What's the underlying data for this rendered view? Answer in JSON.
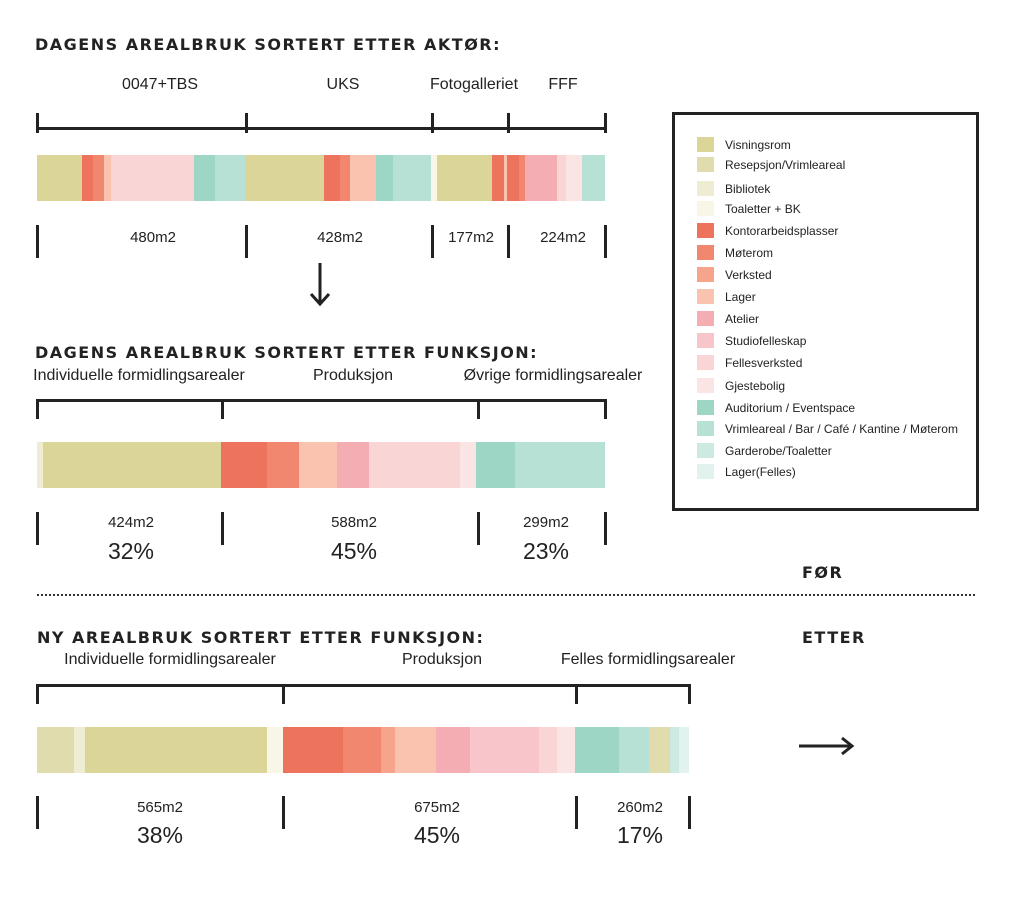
{
  "colors": {
    "visningsrom": "#dcd598",
    "resepsjon": "#e1dcad",
    "bibliotek": "#eeedd3",
    "toaletter": "#f8f6e6",
    "kontor": "#ee735c",
    "moterom": "#f28770",
    "verksted": "#f6a48c",
    "lager": "#f9c3b0",
    "atelier": "#f4adb3",
    "studio": "#f7c5ca",
    "fellesverksted": "#f9d5d6",
    "gjestebolig": "#fbe5e4",
    "auditorium": "#9dd6c5",
    "vrimle": "#b8e1d5",
    "garderobe": "#cdeae2",
    "lagerfelles": "#e2f3ef"
  },
  "legend": [
    {
      "key": "visningsrom",
      "label": "Visningsrom"
    },
    {
      "key": "resepsjon",
      "label": "Resepsjon/Vrimleareal"
    },
    {
      "key": "bibliotek",
      "label": "Bibliotek"
    },
    {
      "key": "toaletter",
      "label": "Toaletter + BK"
    },
    {
      "key": "kontor",
      "label": "Kontorarbeidsplasser"
    },
    {
      "key": "moterom",
      "label": "Møterom"
    },
    {
      "key": "verksted",
      "label": "Verksted"
    },
    {
      "key": "lager",
      "label": "Lager"
    },
    {
      "key": "atelier",
      "label": "Atelier"
    },
    {
      "key": "studio",
      "label": "Studiofelleskap"
    },
    {
      "key": "fellesverksted",
      "label": "Fellesverksted"
    },
    {
      "key": "gjestebolig",
      "label": "Gjestebolig"
    },
    {
      "key": "auditorium",
      "label": "Auditorium / Eventspace"
    },
    {
      "key": "vrimle",
      "label": "Vrimleareal / Bar / Café / Kantine / Møterom"
    },
    {
      "key": "garderobe",
      "label": "Garderobe/Toaletter"
    },
    {
      "key": "lagerfelles",
      "label": "Lager(Felles)"
    }
  ],
  "section1": {
    "title": "DAGENS AREALBRUK SORTERT ETTER AKTØR:",
    "groups": [
      {
        "label": "0047+TBS",
        "area": "480m2"
      },
      {
        "label": "UKS",
        "area": "428m2"
      },
      {
        "label": "Fotogalleriet",
        "area": "177m2"
      },
      {
        "label": "FFF",
        "area": "224m2"
      }
    ],
    "segments": [
      [
        "visningsrom",
        45
      ],
      [
        "kontor",
        11
      ],
      [
        "moterom",
        11
      ],
      [
        "lager",
        7
      ],
      [
        "fellesverksted",
        83
      ],
      [
        "auditorium",
        21
      ],
      [
        "vrimle",
        30
      ],
      [
        "visningsrom",
        79
      ],
      [
        "kontor",
        16
      ],
      [
        "moterom",
        10
      ],
      [
        "lager",
        26
      ],
      [
        "auditorium",
        17
      ],
      [
        "vrimle",
        38
      ],
      [
        "toaletter",
        6
      ],
      [
        "visningsrom",
        55
      ],
      [
        "kontor",
        12
      ],
      [
        "lager",
        3
      ],
      [
        "kontor",
        12
      ],
      [
        "moterom",
        6
      ],
      [
        "atelier",
        32
      ],
      [
        "fellesverksted",
        9
      ],
      [
        "gjestebolig",
        16
      ],
      [
        "vrimle",
        23
      ]
    ]
  },
  "section2": {
    "title": "DAGENS AREALBRUK SORTERT ETTER FUNKSJON:",
    "groups": [
      {
        "label": "Individuelle formidlingsarealer",
        "area": "424m2",
        "percent": "32%"
      },
      {
        "label": "Produksjon",
        "area": "588m2",
        "percent": "45%"
      },
      {
        "label": "Øvrige formidlingsarealer",
        "area": "299m2",
        "percent": "23%"
      }
    ],
    "segments": [
      [
        "bibliotek",
        6
      ],
      [
        "visningsrom",
        178
      ],
      [
        "kontor",
        46
      ],
      [
        "moterom",
        32
      ],
      [
        "lager",
        38
      ],
      [
        "atelier",
        32
      ],
      [
        "fellesverksted",
        91
      ],
      [
        "gjestebolig",
        16
      ],
      [
        "auditorium",
        39
      ],
      [
        "vrimle",
        90
      ]
    ]
  },
  "section3": {
    "title": "NY AREALBRUK SORTERT ETTER FUNKSJON:",
    "groups": [
      {
        "label": "Individuelle formidlingsarealer",
        "area": "565m2",
        "percent": "38%"
      },
      {
        "label": "Produksjon",
        "area": "675m2",
        "percent": "45%"
      },
      {
        "label": "Felles formidlingsarealer",
        "area": "260m2",
        "percent": "17%"
      }
    ],
    "segments": [
      [
        "resepsjon",
        37
      ],
      [
        "bibliotek",
        11
      ],
      [
        "visningsrom",
        182
      ],
      [
        "toaletter",
        16
      ],
      [
        "kontor",
        60
      ],
      [
        "moterom",
        38
      ],
      [
        "verksted",
        14
      ],
      [
        "lager",
        41
      ],
      [
        "atelier",
        34
      ],
      [
        "studio",
        69
      ],
      [
        "fellesverksted",
        18
      ],
      [
        "gjestebolig",
        18
      ],
      [
        "auditorium",
        44
      ],
      [
        "vrimle",
        30
      ],
      [
        "resepsjon",
        21
      ],
      [
        "garderobe",
        9
      ],
      [
        "lagerfelles",
        10
      ]
    ]
  },
  "before_label": "FØR",
  "after_label": "ETTER"
}
